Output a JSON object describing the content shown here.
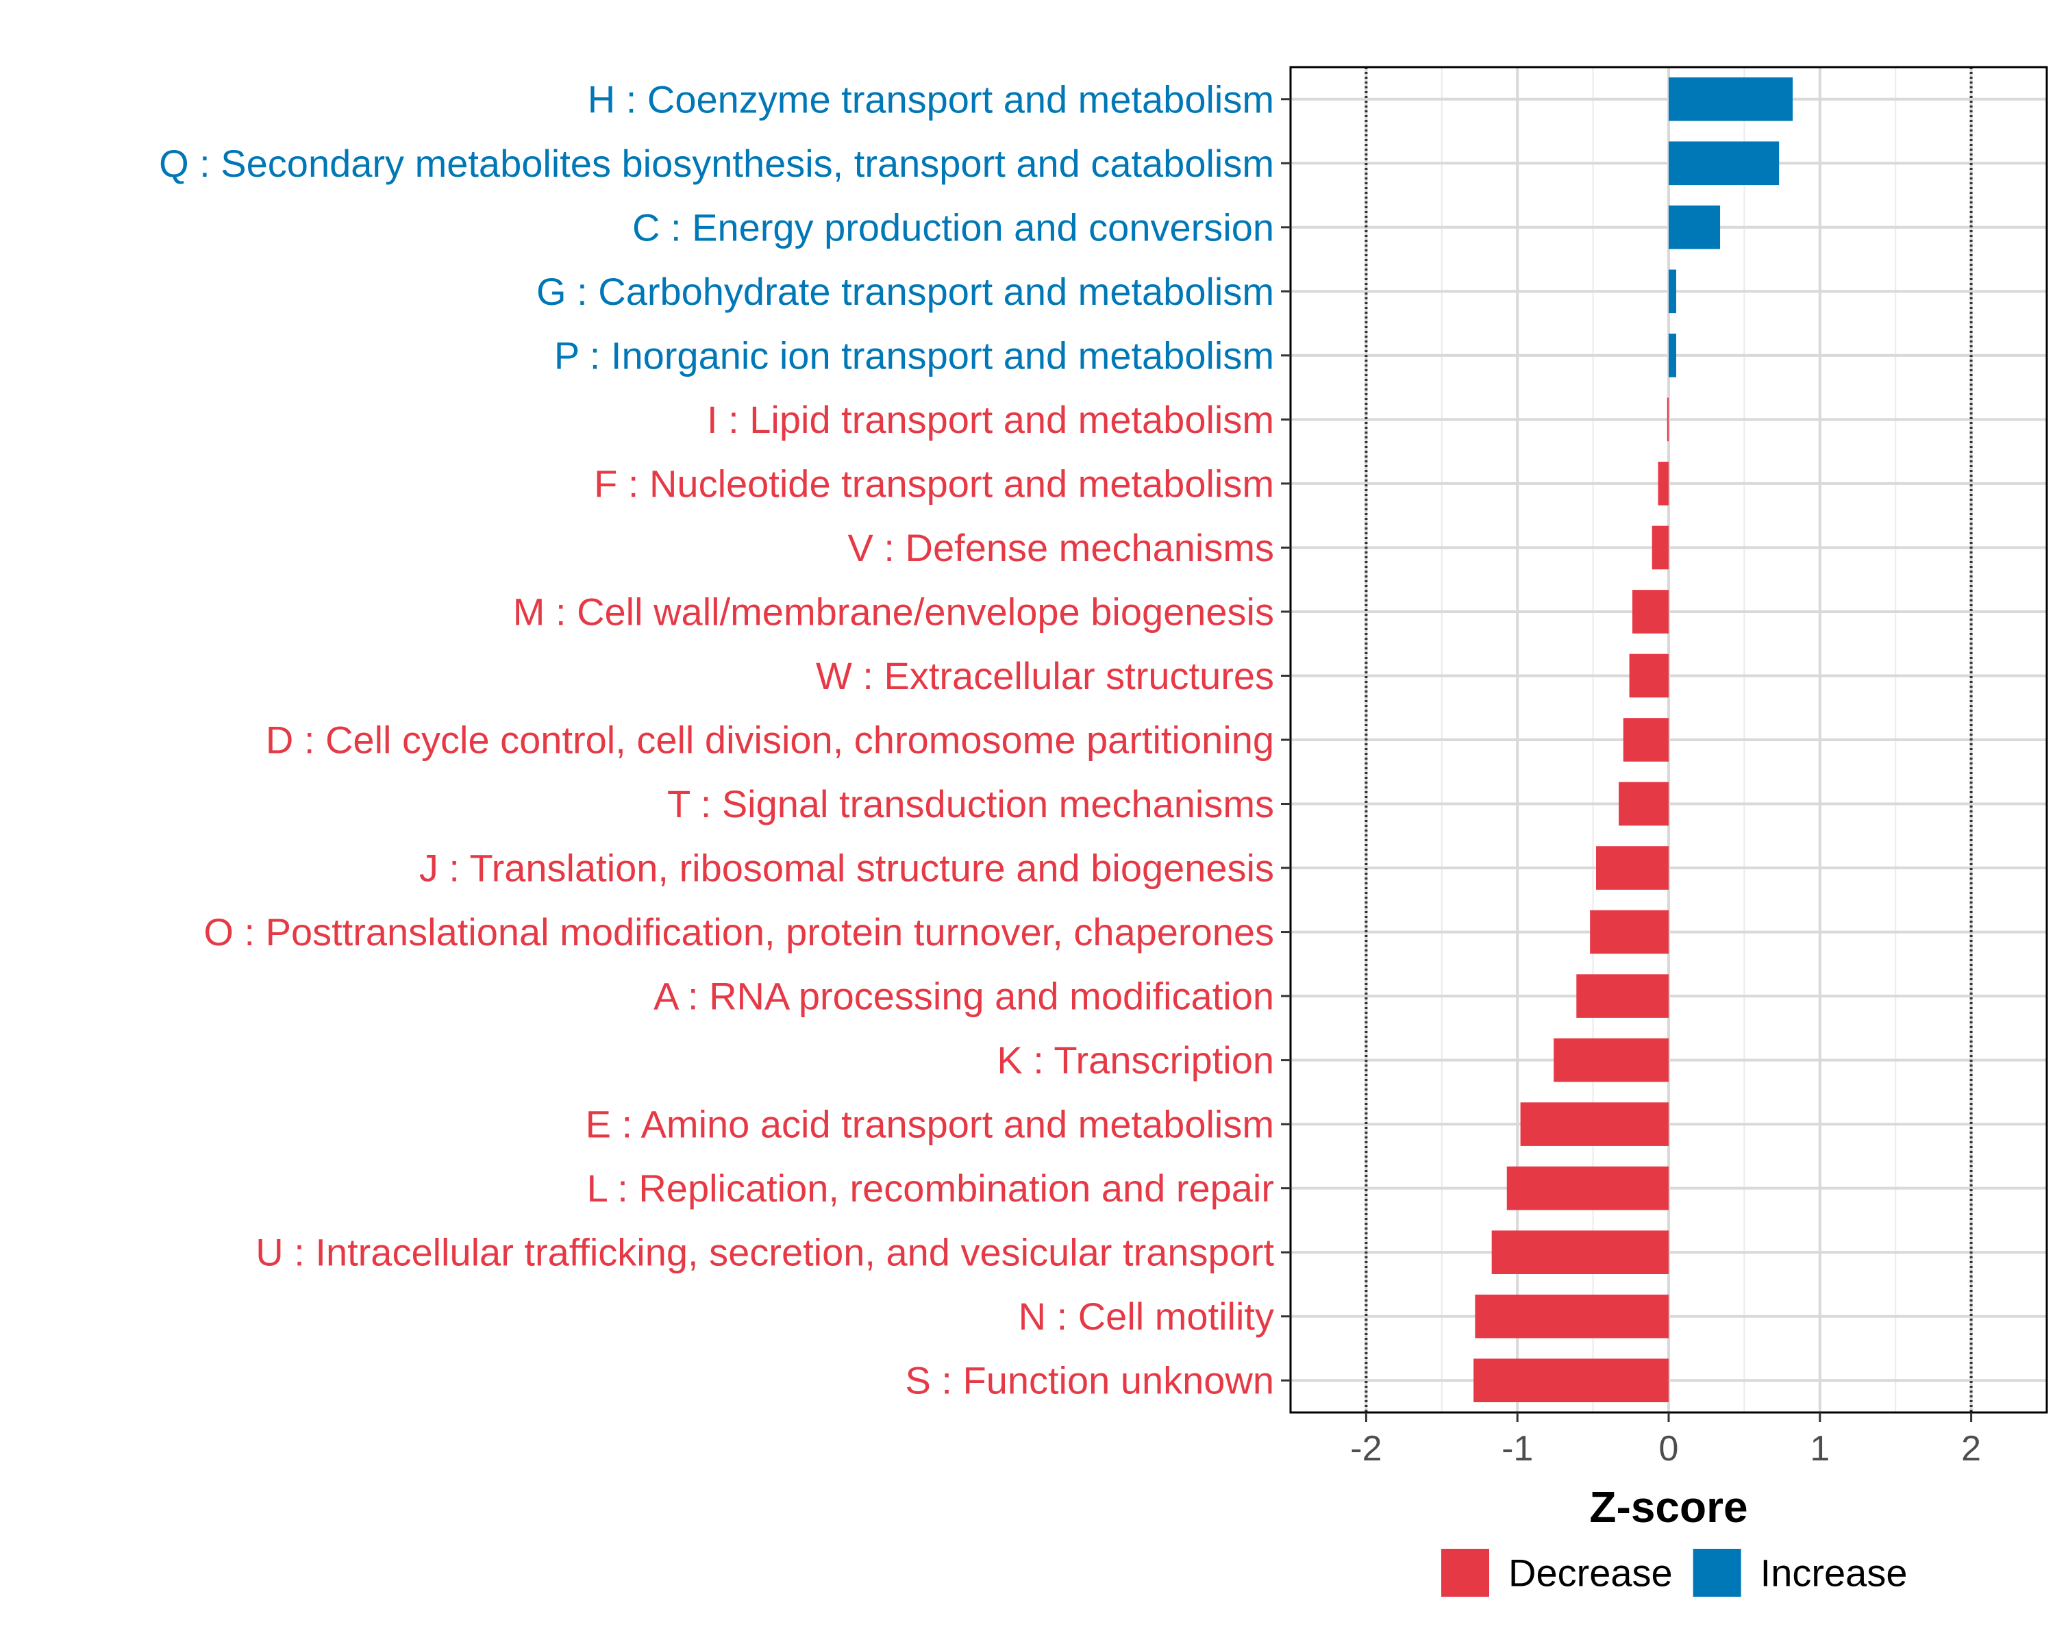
{
  "chart_data": {
    "type": "bar",
    "orientation": "horizontal",
    "xlabel": "Z-score",
    "ylabel": "",
    "xlim": [
      -2.5,
      2.5
    ],
    "xticks": [
      -2,
      -1,
      0,
      1,
      2
    ],
    "xtick_labels": [
      "-2",
      "-1",
      "0",
      "1",
      "2"
    ],
    "reference_lines": [
      -2,
      2
    ],
    "grid": true,
    "legend_position": "bottom",
    "legend": [
      {
        "key": "decrease",
        "label": "Decrease",
        "color": "#e63946"
      },
      {
        "key": "increase",
        "label": "Increase",
        "color": "#0077b6"
      }
    ],
    "bars": [
      {
        "label": "H : Coenzyme transport and metabolism",
        "value": 0.82,
        "group": "increase"
      },
      {
        "label": "Q : Secondary metabolites biosynthesis, transport and catabolism",
        "value": 0.73,
        "group": "increase"
      },
      {
        "label": "C : Energy production and conversion",
        "value": 0.34,
        "group": "increase"
      },
      {
        "label": "G : Carbohydrate transport and metabolism",
        "value": 0.05,
        "group": "increase"
      },
      {
        "label": "P : Inorganic ion transport and metabolism",
        "value": 0.05,
        "group": "increase"
      },
      {
        "label": "I : Lipid transport and metabolism",
        "value": -0.01,
        "group": "decrease"
      },
      {
        "label": "F : Nucleotide transport and metabolism",
        "value": -0.07,
        "group": "decrease"
      },
      {
        "label": "V : Defense mechanisms",
        "value": -0.11,
        "group": "decrease"
      },
      {
        "label": "M : Cell wall/membrane/envelope biogenesis",
        "value": -0.24,
        "group": "decrease"
      },
      {
        "label": "W : Extracellular structures",
        "value": -0.26,
        "group": "decrease"
      },
      {
        "label": "D : Cell cycle control, cell division, chromosome partitioning",
        "value": -0.3,
        "group": "decrease"
      },
      {
        "label": "T : Signal transduction mechanisms",
        "value": -0.33,
        "group": "decrease"
      },
      {
        "label": "J : Translation, ribosomal structure and biogenesis",
        "value": -0.48,
        "group": "decrease"
      },
      {
        "label": "O : Posttranslational modification, protein turnover, chaperones",
        "value": -0.52,
        "group": "decrease"
      },
      {
        "label": "A : RNA processing and modification",
        "value": -0.61,
        "group": "decrease"
      },
      {
        "label": "K : Transcription",
        "value": -0.76,
        "group": "decrease"
      },
      {
        "label": "E : Amino acid transport and metabolism",
        "value": -0.98,
        "group": "decrease"
      },
      {
        "label": "L : Replication, recombination and repair",
        "value": -1.07,
        "group": "decrease"
      },
      {
        "label": "U : Intracellular trafficking, secretion, and vesicular transport",
        "value": -1.17,
        "group": "decrease"
      },
      {
        "label": "N : Cell motility",
        "value": -1.28,
        "group": "decrease"
      },
      {
        "label": "S : Function unknown",
        "value": -1.29,
        "group": "decrease"
      }
    ]
  }
}
